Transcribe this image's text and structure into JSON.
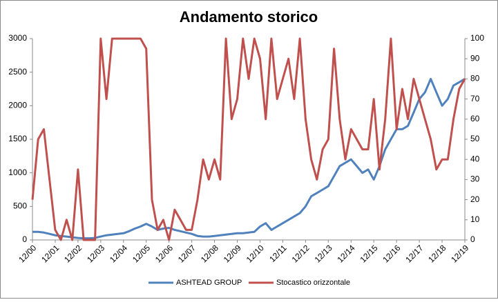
{
  "chart_data": {
    "type": "line",
    "title": "Andamento storico",
    "categories": [
      "12/00",
      null,
      null,
      null,
      "12/01",
      null,
      null,
      null,
      "12/02",
      null,
      null,
      null,
      "12/03",
      null,
      null,
      null,
      "12/04",
      null,
      null,
      null,
      "12/05",
      null,
      null,
      null,
      "12/06",
      null,
      null,
      null,
      "12/07",
      null,
      null,
      null,
      "12/08",
      null,
      null,
      null,
      "12/09",
      null,
      null,
      null,
      "12/10",
      null,
      null,
      null,
      "12/11",
      null,
      null,
      null,
      "12/12",
      null,
      null,
      null,
      "12/13",
      null,
      null,
      null,
      "12/14",
      null,
      null,
      null,
      "12/15",
      null,
      null,
      null,
      "12/16",
      null,
      null,
      null,
      "12/17",
      null,
      null,
      null,
      "12/18",
      null,
      null,
      null,
      "12/19"
    ],
    "series": [
      {
        "name": "ASHTEAD GROUP",
        "color": "#4f81bd",
        "values": [
          120,
          120,
          110,
          90,
          70,
          60,
          50,
          40,
          30,
          25,
          25,
          30,
          50,
          70,
          80,
          90,
          100,
          130,
          170,
          200,
          240,
          200,
          150,
          170,
          180,
          150,
          130,
          110,
          90,
          60,
          50,
          50,
          60,
          70,
          80,
          90,
          100,
          100,
          110,
          120,
          200,
          250,
          150,
          200,
          250,
          300,
          350,
          400,
          500,
          650,
          700,
          750,
          800,
          950,
          1100,
          1150,
          1200,
          1100,
          1000,
          1050,
          900,
          1100,
          1350,
          1500,
          1650,
          1650,
          1700,
          1900,
          2100,
          2200,
          2400,
          2200,
          2000,
          2100,
          2300,
          2350,
          2400
        ]
      },
      {
        "name": "Stocastico orizzontale",
        "color": "#c0504d",
        "axis": "y2",
        "values": [
          20,
          50,
          55,
          30,
          5,
          0,
          10,
          0,
          35,
          0,
          0,
          0,
          100,
          70,
          100,
          100,
          100,
          100,
          100,
          100,
          95,
          20,
          5,
          10,
          0,
          15,
          10,
          5,
          5,
          20,
          40,
          30,
          40,
          30,
          100,
          60,
          70,
          100,
          80,
          100,
          90,
          60,
          100,
          70,
          80,
          90,
          70,
          100,
          60,
          40,
          30,
          45,
          50,
          95,
          60,
          40,
          55,
          50,
          45,
          45,
          70,
          35,
          60,
          100,
          55,
          75,
          60,
          80,
          70,
          60,
          50,
          35,
          40,
          40,
          60,
          75,
          80
        ]
      }
    ],
    "ylim": [
      0,
      3000
    ],
    "yticks": [
      0,
      500,
      1000,
      1500,
      2000,
      2500,
      3000
    ],
    "y2lim": [
      0,
      100
    ],
    "y2ticks": [
      0,
      10,
      20,
      30,
      40,
      50,
      60,
      70,
      80,
      90,
      100
    ],
    "legend": "bottom"
  }
}
